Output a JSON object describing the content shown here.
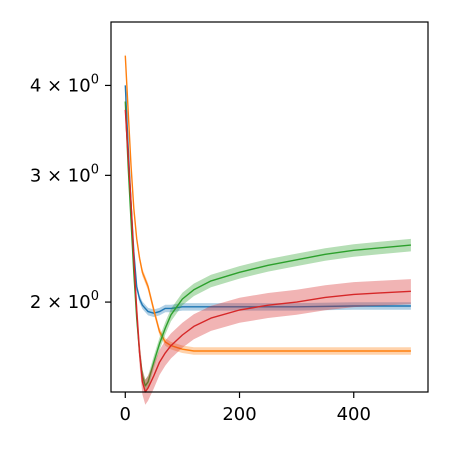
{
  "chart_data": {
    "type": "line",
    "title": "",
    "xlabel": "",
    "ylabel": "",
    "xlim": [
      -25,
      530
    ],
    "ylim": [
      1.5,
      4.9
    ],
    "yscale": "log",
    "grid": false,
    "legend": "none",
    "xticks": [
      {
        "value": 0,
        "label": "0"
      },
      {
        "value": 200,
        "label": "200"
      },
      {
        "value": 400,
        "label": "400"
      }
    ],
    "yticks": [
      {
        "value": 2,
        "base": "2",
        "label": "2 × 10^0"
      },
      {
        "value": 3,
        "base": "3",
        "label": "3 × 10^0"
      },
      {
        "value": 4,
        "base": "4",
        "label": "4 × 10^0"
      }
    ],
    "series": [
      {
        "color": "#1f77b4",
        "band_halfwidth": 0.012,
        "x": [
          0,
          5,
          10,
          15,
          20,
          25,
          30,
          40,
          50,
          60,
          70,
          80,
          100,
          150,
          200,
          300,
          400,
          500
        ],
        "y": [
          4.0,
          3.3,
          2.75,
          2.35,
          2.1,
          2.02,
          1.98,
          1.94,
          1.93,
          1.94,
          1.96,
          1.96,
          1.97,
          1.97,
          1.97,
          1.97,
          1.975,
          1.975
        ]
      },
      {
        "color": "#ff7f0e",
        "band_halfwidth": 0.012,
        "x": [
          0,
          5,
          10,
          15,
          20,
          25,
          30,
          40,
          50,
          60,
          70,
          80,
          90,
          100,
          120,
          150,
          200,
          300,
          400,
          500
        ],
        "y": [
          4.4,
          3.7,
          3.1,
          2.7,
          2.45,
          2.3,
          2.2,
          2.1,
          1.95,
          1.82,
          1.76,
          1.74,
          1.73,
          1.72,
          1.71,
          1.71,
          1.71,
          1.71,
          1.71,
          1.71
        ]
      },
      {
        "color": "#2ca02c",
        "band_halfwidth": 0.02,
        "x": [
          0,
          5,
          10,
          15,
          20,
          25,
          30,
          35,
          40,
          50,
          60,
          70,
          80,
          100,
          120,
          150,
          200,
          250,
          300,
          350,
          400,
          450,
          500
        ],
        "y": [
          3.8,
          3.1,
          2.6,
          2.2,
          1.9,
          1.7,
          1.58,
          1.53,
          1.55,
          1.65,
          1.75,
          1.84,
          1.92,
          2.02,
          2.08,
          2.14,
          2.2,
          2.25,
          2.29,
          2.33,
          2.36,
          2.38,
          2.4
        ]
      },
      {
        "color": "#d62728",
        "band_halfwidth": 0.04,
        "x": [
          0,
          5,
          10,
          15,
          20,
          25,
          30,
          35,
          40,
          50,
          60,
          70,
          80,
          100,
          120,
          150,
          200,
          250,
          300,
          350,
          400,
          450,
          500
        ],
        "y": [
          3.7,
          3.2,
          2.75,
          2.3,
          1.95,
          1.7,
          1.55,
          1.5,
          1.52,
          1.58,
          1.65,
          1.7,
          1.74,
          1.8,
          1.85,
          1.9,
          1.95,
          1.98,
          2.0,
          2.03,
          2.05,
          2.06,
          2.07
        ]
      }
    ]
  }
}
